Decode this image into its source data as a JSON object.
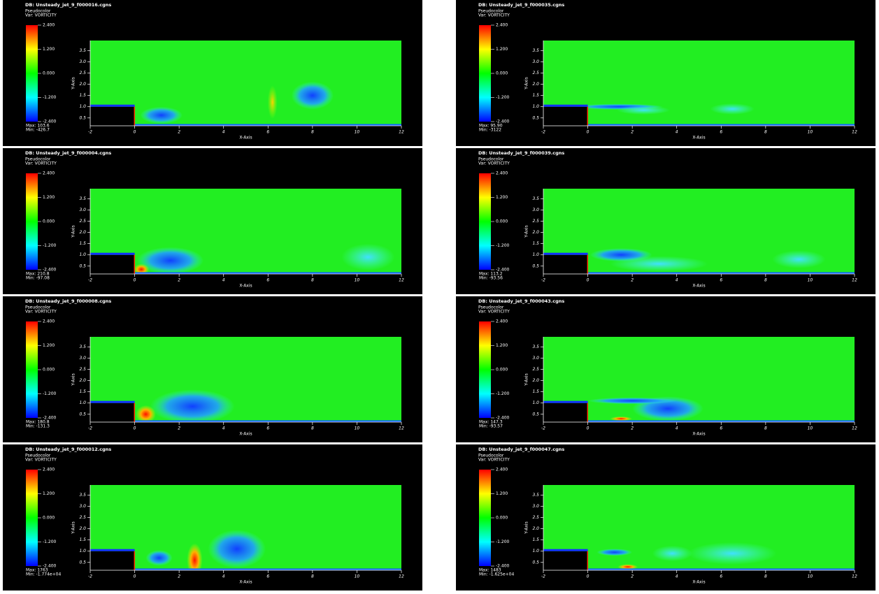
{
  "chart_data": [
    {
      "type": "pseudocolor",
      "title": "DB: Unsteady_jet_9_f000016.cgns",
      "plot_label": "Pseudocolor",
      "variable": "Var: VORTICITY",
      "max_label": "Max: 103.6",
      "min_label": "Min: -426.7",
      "x_label": "X-Axis",
      "y_label": "Y-Axis",
      "clim": [
        -2.4,
        2.4
      ],
      "cticks": [
        {
          "value": 2.4,
          "label": "2.400"
        },
        {
          "value": 1.2,
          "label": "1.200"
        },
        {
          "value": 0,
          "label": "0.000"
        },
        {
          "value": -1.2,
          "label": "-1.200"
        },
        {
          "value": -2.4,
          "label": "-2.400"
        }
      ],
      "xlim": [
        -2,
        12
      ],
      "ylim": [
        0.15,
        3.95
      ],
      "xticks": [
        -2,
        0,
        2,
        4,
        6,
        8,
        10,
        12
      ],
      "yticks": [
        {
          "value": 0.5,
          "label": "0.5"
        },
        {
          "value": 1,
          "label": "1.0"
        },
        {
          "value": 1.5,
          "label": "1.5"
        },
        {
          "value": 2,
          "label": "2.0"
        },
        {
          "value": 2.5,
          "label": "2.5"
        },
        {
          "value": 3,
          "label": "3.0"
        },
        {
          "value": 3.5,
          "label": "3.5"
        }
      ]
    },
    {
      "type": "pseudocolor",
      "title": "DB: Unsteady_jet_9_f000035.cgns",
      "plot_label": "Pseudocolor",
      "variable": "Var: VORTICITY",
      "max_label": "Max: 95.90",
      "min_label": "Min: -3122",
      "x_label": "X-Axis",
      "y_label": "Y-Axis",
      "clim": [
        -2.4,
        2.4
      ],
      "cticks": [
        {
          "value": 2.4,
          "label": "2.400"
        },
        {
          "value": 1.2,
          "label": "1.200"
        },
        {
          "value": 0,
          "label": "0.000"
        },
        {
          "value": -1.2,
          "label": "-1.200"
        },
        {
          "value": -2.4,
          "label": "-2.400"
        }
      ],
      "xlim": [
        -2,
        12
      ],
      "ylim": [
        0.15,
        3.95
      ],
      "xticks": [
        -2,
        0,
        2,
        4,
        6,
        8,
        10,
        12
      ],
      "yticks": [
        {
          "value": 0.5,
          "label": "0.5"
        },
        {
          "value": 1,
          "label": "1.0"
        },
        {
          "value": 1.5,
          "label": "1.5"
        },
        {
          "value": 2,
          "label": "2.0"
        },
        {
          "value": 2.5,
          "label": "2.5"
        },
        {
          "value": 3,
          "label": "3.0"
        },
        {
          "value": 3.5,
          "label": "3.5"
        }
      ]
    },
    {
      "type": "pseudocolor",
      "title": "DB: Unsteady_jet_9_f000004.cgns",
      "plot_label": "Pseudocolor",
      "variable": "Var: VORTICITY",
      "max_label": "Max: 210.8",
      "min_label": "Min: -97.08",
      "x_label": "X-Axis",
      "y_label": "Y-Axis",
      "clim": [
        -2.4,
        2.4
      ],
      "cticks": [
        {
          "value": 2.4,
          "label": "2.400"
        },
        {
          "value": 1.2,
          "label": "1.200"
        },
        {
          "value": 0,
          "label": "0.000"
        },
        {
          "value": -1.2,
          "label": "-1.200"
        },
        {
          "value": -2.4,
          "label": "-2.400"
        }
      ],
      "xlim": [
        -2,
        12
      ],
      "ylim": [
        0.15,
        3.95
      ],
      "xticks": [
        -2,
        0,
        2,
        4,
        6,
        8,
        10,
        12
      ],
      "yticks": [
        {
          "value": 0.5,
          "label": "0.5"
        },
        {
          "value": 1,
          "label": "1.0"
        },
        {
          "value": 1.5,
          "label": "1.5"
        },
        {
          "value": 2,
          "label": "2.0"
        },
        {
          "value": 2.5,
          "label": "2.5"
        },
        {
          "value": 3,
          "label": "3.0"
        },
        {
          "value": 3.5,
          "label": "3.5"
        }
      ]
    },
    {
      "type": "pseudocolor",
      "title": "DB: Unsteady_jet_9_f000039.cgns",
      "plot_label": "Pseudocolor",
      "variable": "Var: VORTICITY",
      "max_label": "Max: 113.2",
      "min_label": "Min: -93.56",
      "x_label": "X-Axis",
      "y_label": "Y-Axis",
      "clim": [
        -2.4,
        2.4
      ],
      "cticks": [
        {
          "value": 2.4,
          "label": "2.400"
        },
        {
          "value": 1.2,
          "label": "1.200"
        },
        {
          "value": 0,
          "label": "0.000"
        },
        {
          "value": -1.2,
          "label": "-1.200"
        },
        {
          "value": -2.4,
          "label": "-2.400"
        }
      ],
      "xlim": [
        -2,
        12
      ],
      "ylim": [
        0.15,
        3.95
      ],
      "xticks": [
        -2,
        0,
        2,
        4,
        6,
        8,
        10,
        12
      ],
      "yticks": [
        {
          "value": 0.5,
          "label": "0.5"
        },
        {
          "value": 1,
          "label": "1.0"
        },
        {
          "value": 1.5,
          "label": "1.5"
        },
        {
          "value": 2,
          "label": "2.0"
        },
        {
          "value": 2.5,
          "label": "2.5"
        },
        {
          "value": 3,
          "label": "3.0"
        },
        {
          "value": 3.5,
          "label": "3.5"
        }
      ]
    },
    {
      "type": "pseudocolor",
      "title": "DB: Unsteady_jet_9_f000008.cgns",
      "plot_label": "Pseudocolor",
      "variable": "Var: VORTICITY",
      "max_label": "Max: 180.8",
      "min_label": "Min: -131.3",
      "x_label": "X-Axis",
      "y_label": "Y-Axis",
      "clim": [
        -2.4,
        2.4
      ],
      "cticks": [
        {
          "value": 2.4,
          "label": "2.400"
        },
        {
          "value": 1.2,
          "label": "1.200"
        },
        {
          "value": 0,
          "label": "0.000"
        },
        {
          "value": -1.2,
          "label": "-1.200"
        },
        {
          "value": -2.4,
          "label": "-2.400"
        }
      ],
      "xlim": [
        -2,
        12
      ],
      "ylim": [
        0.15,
        3.95
      ],
      "xticks": [
        -2,
        0,
        2,
        4,
        6,
        8,
        10,
        12
      ],
      "yticks": [
        {
          "value": 0.5,
          "label": "0.5"
        },
        {
          "value": 1,
          "label": "1.0"
        },
        {
          "value": 1.5,
          "label": "1.5"
        },
        {
          "value": 2,
          "label": "2.0"
        },
        {
          "value": 2.5,
          "label": "2.5"
        },
        {
          "value": 3,
          "label": "3.0"
        },
        {
          "value": 3.5,
          "label": "3.5"
        }
      ]
    },
    {
      "type": "pseudocolor",
      "title": "DB: Unsteady_jet_9_f000043.cgns",
      "plot_label": "Pseudocolor",
      "variable": "Var: VORTICITY",
      "max_label": "Max: 147.3",
      "min_label": "Min: -93.57",
      "x_label": "X-Axis",
      "y_label": "Y-Axis",
      "clim": [
        -2.4,
        2.4
      ],
      "cticks": [
        {
          "value": 2.4,
          "label": "2.400"
        },
        {
          "value": 1.2,
          "label": "1.200"
        },
        {
          "value": 0,
          "label": "0.000"
        },
        {
          "value": -1.2,
          "label": "-1.200"
        },
        {
          "value": -2.4,
          "label": "-2.400"
        }
      ],
      "xlim": [
        -2,
        12
      ],
      "ylim": [
        0.15,
        3.95
      ],
      "xticks": [
        -2,
        0,
        2,
        4,
        6,
        8,
        10,
        12
      ],
      "yticks": [
        {
          "value": 0.5,
          "label": "0.5"
        },
        {
          "value": 1,
          "label": "1.0"
        },
        {
          "value": 1.5,
          "label": "1.5"
        },
        {
          "value": 2,
          "label": "2.0"
        },
        {
          "value": 2.5,
          "label": "2.5"
        },
        {
          "value": 3,
          "label": "3.0"
        },
        {
          "value": 3.5,
          "label": "3.5"
        }
      ]
    },
    {
      "type": "pseudocolor",
      "title": "DB: Unsteady_jet_9_f000012.cgns",
      "plot_label": "Pseudocolor",
      "variable": "Var: VORTICITY",
      "max_label": "Max: 1763",
      "min_label": "Min: -1.774e+04",
      "x_label": "X-Axis",
      "y_label": "Y-Axis",
      "clim": [
        -2.4,
        2.4
      ],
      "cticks": [
        {
          "value": 2.4,
          "label": "2.400"
        },
        {
          "value": 1.2,
          "label": "1.200"
        },
        {
          "value": 0,
          "label": "0.000"
        },
        {
          "value": -1.2,
          "label": "-1.200"
        },
        {
          "value": -2.4,
          "label": "-2.400"
        }
      ],
      "xlim": [
        -2,
        12
      ],
      "ylim": [
        0.15,
        3.95
      ],
      "xticks": [
        -2,
        0,
        2,
        4,
        6,
        8,
        10,
        12
      ],
      "yticks": [
        {
          "value": 0.5,
          "label": "0.5"
        },
        {
          "value": 1,
          "label": "1.0"
        },
        {
          "value": 1.5,
          "label": "1.5"
        },
        {
          "value": 2,
          "label": "2.0"
        },
        {
          "value": 2.5,
          "label": "2.5"
        },
        {
          "value": 3,
          "label": "3.0"
        },
        {
          "value": 3.5,
          "label": "3.5"
        }
      ]
    },
    {
      "type": "pseudocolor",
      "title": "DB: Unsteady_jet_9_f000047.cgns",
      "plot_label": "Pseudocolor",
      "variable": "Var: VORTICITY",
      "max_label": "Max: 1483",
      "min_label": "Min: -1.625e+04",
      "x_label": "X-Axis",
      "y_label": "Y-Axis",
      "clim": [
        -2.4,
        2.4
      ],
      "cticks": [
        {
          "value": 2.4,
          "label": "2.400"
        },
        {
          "value": 1.2,
          "label": "1.200"
        },
        {
          "value": 0,
          "label": "0.000"
        },
        {
          "value": -1.2,
          "label": "-1.200"
        },
        {
          "value": -2.4,
          "label": "-2.400"
        }
      ],
      "xlim": [
        -2,
        12
      ],
      "ylim": [
        0.15,
        3.95
      ],
      "xticks": [
        -2,
        0,
        2,
        4,
        6,
        8,
        10,
        12
      ],
      "yticks": [
        {
          "value": 0.5,
          "label": "0.5"
        },
        {
          "value": 1,
          "label": "1.0"
        },
        {
          "value": 1.5,
          "label": "1.5"
        },
        {
          "value": 2,
          "label": "2.0"
        },
        {
          "value": 2.5,
          "label": "2.5"
        },
        {
          "value": 3,
          "label": "3.0"
        },
        {
          "value": 3.5,
          "label": "3.5"
        }
      ]
    }
  ]
}
